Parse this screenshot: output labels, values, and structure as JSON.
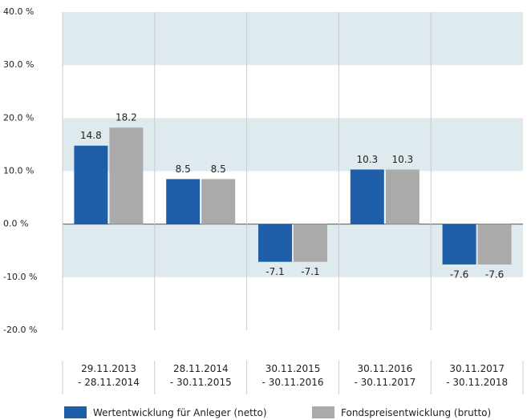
{
  "chart_data": {
    "type": "bar",
    "categories": [
      "29.11.2013\n- 28.11.2014",
      "28.11.2014\n- 30.11.2015",
      "30.11.2015\n- 30.11.2016",
      "30.11.2016\n- 30.11.2017",
      "30.11.2017\n- 30.11.2018"
    ],
    "series": [
      {
        "name": "Wertentwicklung für Anleger (netto)",
        "color": "#1f5ea8",
        "values": [
          14.8,
          8.5,
          -7.1,
          10.3,
          -7.6
        ]
      },
      {
        "name": "Fondspreisentwicklung (brutto)",
        "color": "#aaaaaa",
        "values": [
          18.2,
          8.5,
          -7.1,
          10.3,
          -7.6
        ]
      }
    ],
    "ylim": [
      -20,
      40
    ],
    "yticks": [
      {
        "value": -20,
        "label": "-20.0 %"
      },
      {
        "value": -10,
        "label": "-10.0 %"
      },
      {
        "value": 0,
        "label": "0.0 %"
      },
      {
        "value": 10,
        "label": "10.0 %"
      },
      {
        "value": 20,
        "label": "20.0 %"
      },
      {
        "value": 30,
        "label": "30.0 %"
      },
      {
        "value": 40,
        "label": "40.0 %"
      }
    ],
    "grid": true
  }
}
